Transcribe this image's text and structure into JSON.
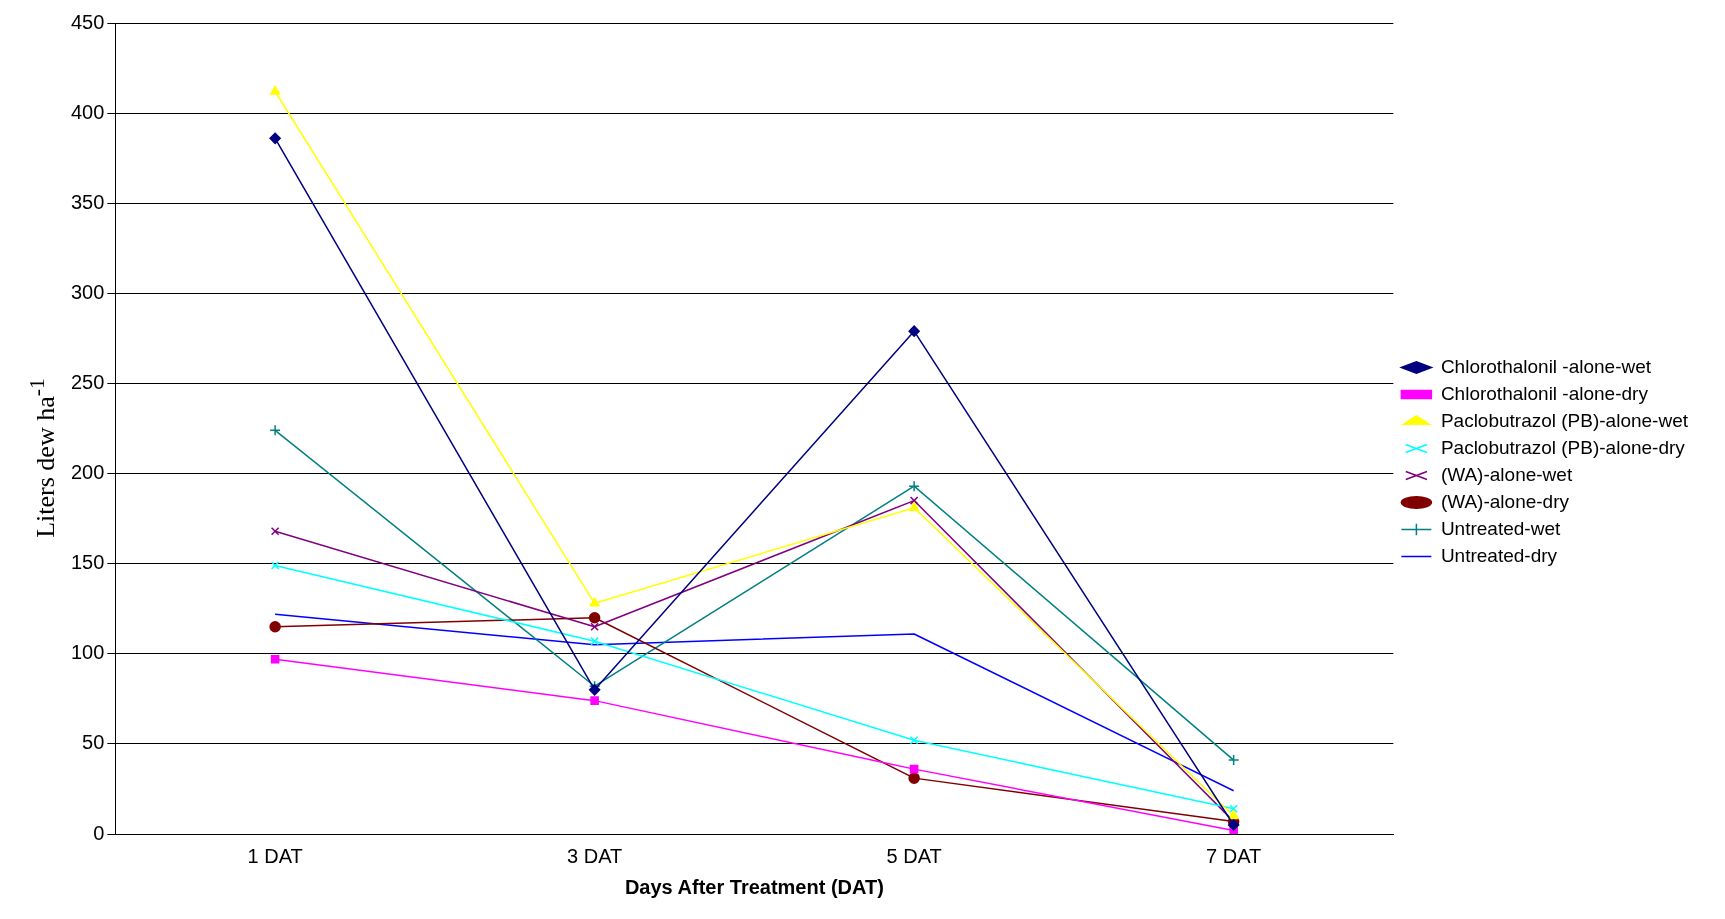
{
  "chart_data": {
    "type": "line",
    "xlabel": "Days After Treatment (DAT)",
    "ylabel": "Liters dew ha$^{-1}$",
    "categories": [
      "1 DAT",
      "3 DAT",
      "5 DAT",
      "7 DAT"
    ],
    "ylim": [
      0,
      450
    ],
    "yticks": [
      0,
      50,
      100,
      150,
      200,
      250,
      300,
      350,
      400,
      450
    ],
    "grid": "y",
    "legend": "right",
    "series": [
      {
        "name": "Chlorothalonil -alone-wet",
        "color": "#000080",
        "marker": "diamond",
        "values": [
          386,
          80,
          279,
          5
        ]
      },
      {
        "name": "Chlorothalonil -alone-dry",
        "color": "#ff00ff",
        "marker": "square",
        "values": [
          97,
          74,
          36,
          2
        ]
      },
      {
        "name": "Paclobutrazol (PB)-alone-wet",
        "color": "#ffff00",
        "marker": "triangle",
        "values": [
          412,
          128,
          181,
          10
        ]
      },
      {
        "name": "Paclobutrazol (PB)-alone-dry",
        "color": "#00ffff",
        "marker": "cross",
        "values": [
          149,
          107,
          52,
          14
        ]
      },
      {
        "name": "(WA)-alone-wet",
        "color": "#800080",
        "marker": "cross",
        "values": [
          168,
          115,
          185,
          7
        ]
      },
      {
        "name": "(WA)-alone-dry",
        "color": "#800000",
        "marker": "circle",
        "values": [
          115,
          120,
          31,
          7
        ]
      },
      {
        "name": "Untreated-wet",
        "color": "#008080",
        "marker": "plus",
        "values": [
          224,
          82,
          193,
          41
        ]
      },
      {
        "name": "Untreated-dry",
        "color": "#0000ff",
        "marker": "none",
        "values": [
          122,
          105,
          111,
          24
        ]
      }
    ]
  }
}
